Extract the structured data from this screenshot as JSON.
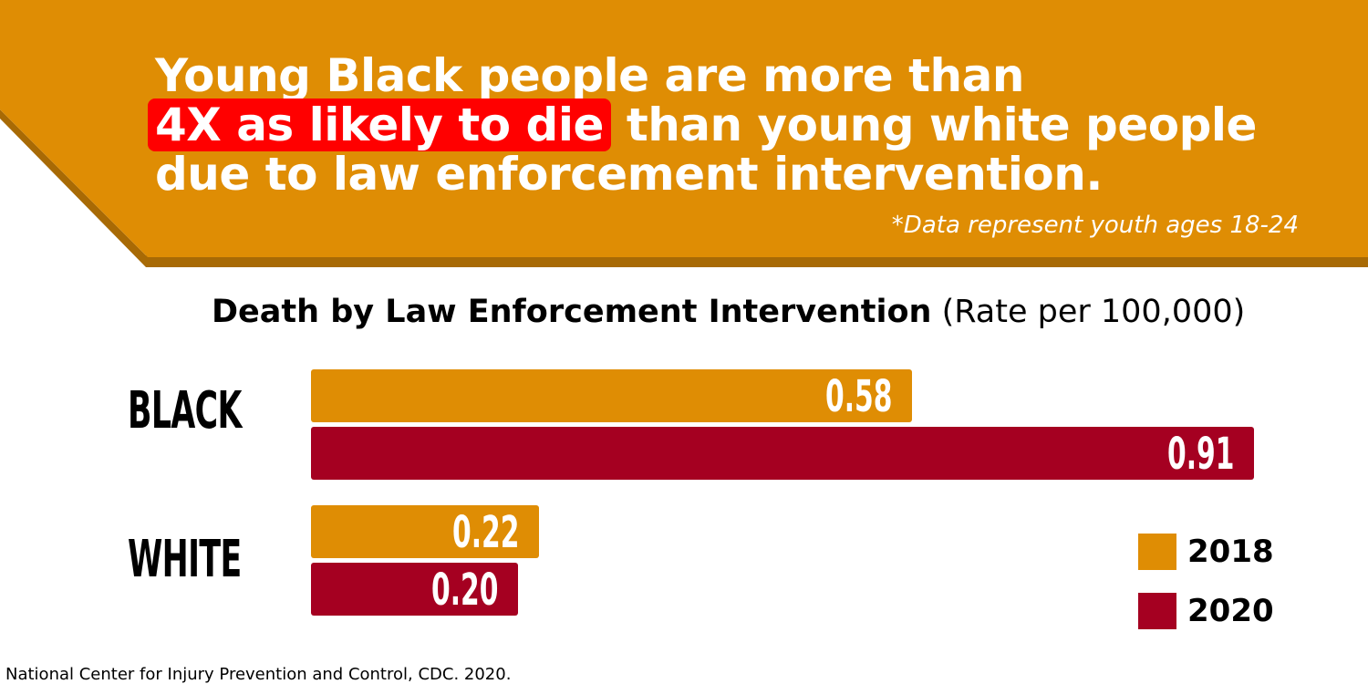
{
  "header": {
    "line1": "Young Black people are more than",
    "highlight": "4X as likely to die",
    "line2_rest": " than young white people",
    "line3": "due to law enforcement intervention.",
    "footnote": "*Data represent youth ages 18-24",
    "colors": {
      "banner": "#df8d04",
      "banner_shadow": "#a86a05",
      "highlight": "#ff0000"
    }
  },
  "chart_data": {
    "type": "bar",
    "orientation": "horizontal",
    "title": "Death by Law Enforcement Intervention",
    "subtitle": "(Rate per 100,000)",
    "categories": [
      "BLACK",
      "WHITE"
    ],
    "series": [
      {
        "name": "2018",
        "color": "#df8d04",
        "values": [
          0.58,
          0.22
        ],
        "labels": [
          "0.58",
          "0.22"
        ]
      },
      {
        "name": "2020",
        "color": "#a50021",
        "values": [
          0.91,
          0.2
        ],
        "labels": [
          "0.91",
          "0.20"
        ]
      }
    ],
    "xlim": [
      0,
      0.91
    ],
    "grid": false,
    "legend": "bottom-right"
  },
  "source": "National Center for Injury Prevention and Control, CDC. 2020."
}
